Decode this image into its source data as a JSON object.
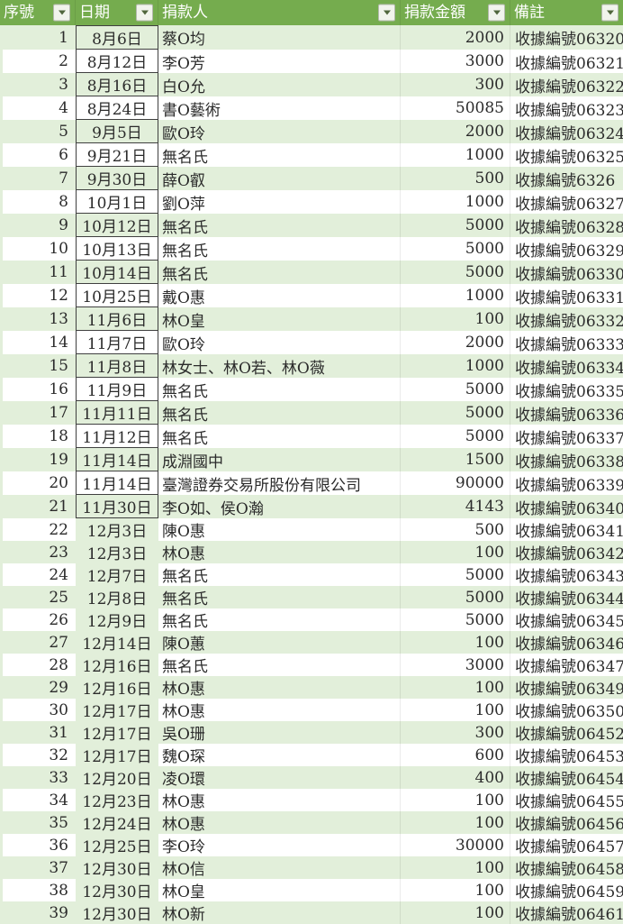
{
  "table": {
    "columns": [
      {
        "key": "no",
        "label": "序號"
      },
      {
        "key": "date",
        "label": "日期"
      },
      {
        "key": "donor",
        "label": "捐款人"
      },
      {
        "key": "amount",
        "label": "捐款金額"
      },
      {
        "key": "note",
        "label": "備註"
      }
    ],
    "date_box_until": 21,
    "rows": [
      {
        "no": 1,
        "date": "8月6日",
        "donor": "蔡O均",
        "amount": 2000,
        "note": "收據編號06320"
      },
      {
        "no": 2,
        "date": "8月12日",
        "donor": "李O芳",
        "amount": 3000,
        "note": "收據編號06321"
      },
      {
        "no": 3,
        "date": "8月16日",
        "donor": "白O允",
        "amount": 300,
        "note": "收據編號06322"
      },
      {
        "no": 4,
        "date": "8月24日",
        "donor": "書O藝術",
        "amount": 50085,
        "note": "收據編號06323"
      },
      {
        "no": 5,
        "date": "9月5日",
        "donor": "歐O玲",
        "amount": 2000,
        "note": "收據編號06324"
      },
      {
        "no": 6,
        "date": "9月21日",
        "donor": "無名氏",
        "amount": 1000,
        "note": "收據編號06325"
      },
      {
        "no": 7,
        "date": "9月30日",
        "donor": "薛O叡",
        "amount": 500,
        "note": "收據編號6326"
      },
      {
        "no": 8,
        "date": "10月1日",
        "donor": "劉O萍",
        "amount": 1000,
        "note": "收據編號06327"
      },
      {
        "no": 9,
        "date": "10月12日",
        "donor": "無名氏",
        "amount": 5000,
        "note": "收據編號06328"
      },
      {
        "no": 10,
        "date": "10月13日",
        "donor": "無名氏",
        "amount": 5000,
        "note": "收據編號06329"
      },
      {
        "no": 11,
        "date": "10月14日",
        "donor": "無名氏",
        "amount": 5000,
        "note": "收據編號06330"
      },
      {
        "no": 12,
        "date": "10月25日",
        "donor": "戴O惠",
        "amount": 1000,
        "note": "收據編號06331"
      },
      {
        "no": 13,
        "date": "11月6日",
        "donor": "林O皇",
        "amount": 100,
        "note": "收據編號06332"
      },
      {
        "no": 14,
        "date": "11月7日",
        "donor": "歐O玲",
        "amount": 2000,
        "note": "收據編號06333"
      },
      {
        "no": 15,
        "date": "11月8日",
        "donor": "林女士、林O若、林O薇",
        "amount": 1000,
        "note": "收據編號06334"
      },
      {
        "no": 16,
        "date": "11月9日",
        "donor": "無名氏",
        "amount": 5000,
        "note": "收據編號06335"
      },
      {
        "no": 17,
        "date": "11月11日",
        "donor": "無名氏",
        "amount": 5000,
        "note": "收據編號06336"
      },
      {
        "no": 18,
        "date": "11月12日",
        "donor": "無名氏",
        "amount": 5000,
        "note": "收據編號06337"
      },
      {
        "no": 19,
        "date": "11月14日",
        "donor": "成淵國中",
        "amount": 1500,
        "note": "收據編號06338"
      },
      {
        "no": 20,
        "date": "11月14日",
        "donor": "臺灣證券交易所股份有限公司",
        "amount": 90000,
        "note": "收據編號06339"
      },
      {
        "no": 21,
        "date": "11月30日",
        "donor": "李O如、侯O瀚",
        "amount": 4143,
        "note": "收據編號06340"
      },
      {
        "no": 22,
        "date": "12月3日",
        "donor": "陳O惠",
        "amount": 500,
        "note": "收據編號06341"
      },
      {
        "no": 23,
        "date": "12月3日",
        "donor": "林O惠",
        "amount": 100,
        "note": "收據編號06342"
      },
      {
        "no": 24,
        "date": "12月7日",
        "donor": "無名氏",
        "amount": 5000,
        "note": "收據編號06343"
      },
      {
        "no": 25,
        "date": "12月8日",
        "donor": "無名氏",
        "amount": 5000,
        "note": "收據編號06344"
      },
      {
        "no": 26,
        "date": "12月9日",
        "donor": "無名氏",
        "amount": 5000,
        "note": "收據編號06345"
      },
      {
        "no": 27,
        "date": "12月14日",
        "donor": "陳O蕙",
        "amount": 100,
        "note": "收據編號06346"
      },
      {
        "no": 28,
        "date": "12月16日",
        "donor": "無名氏",
        "amount": 3000,
        "note": "收據編號06347"
      },
      {
        "no": 29,
        "date": "12月16日",
        "donor": "林O惠",
        "amount": 100,
        "note": "收據編號06349"
      },
      {
        "no": 30,
        "date": "12月17日",
        "donor": "林O惠",
        "amount": 100,
        "note": "收據編號06350"
      },
      {
        "no": 31,
        "date": "12月17日",
        "donor": "吳O珊",
        "amount": 300,
        "note": "收據編號06452"
      },
      {
        "no": 32,
        "date": "12月17日",
        "donor": "魏O琛",
        "amount": 600,
        "note": "收據編號06453"
      },
      {
        "no": 33,
        "date": "12月20日",
        "donor": "凌O環",
        "amount": 400,
        "note": "收據編號06454"
      },
      {
        "no": 34,
        "date": "12月23日",
        "donor": "林O惠",
        "amount": 100,
        "note": "收據編號06455"
      },
      {
        "no": 35,
        "date": "12月24日",
        "donor": "林O惠",
        "amount": 100,
        "note": "收據編號06456"
      },
      {
        "no": 36,
        "date": "12月25日",
        "donor": "李O玲",
        "amount": 30000,
        "note": "收據編號06457"
      },
      {
        "no": 37,
        "date": "12月30日",
        "donor": "林O信",
        "amount": 100,
        "note": "收據編號06458"
      },
      {
        "no": 38,
        "date": "12月30日",
        "donor": "林O皇",
        "amount": 100,
        "note": "收據編號06459"
      },
      {
        "no": 39,
        "date": "12月30日",
        "donor": "林O新",
        "amount": 100,
        "note": "收據編號06461"
      }
    ]
  },
  "colors": {
    "header_green": "#75AC4E",
    "band_green": "#E2EFDA",
    "row_white": "#FFFFFF",
    "date_box_border": "#404040",
    "table_bottom_border": "#70AD47"
  }
}
